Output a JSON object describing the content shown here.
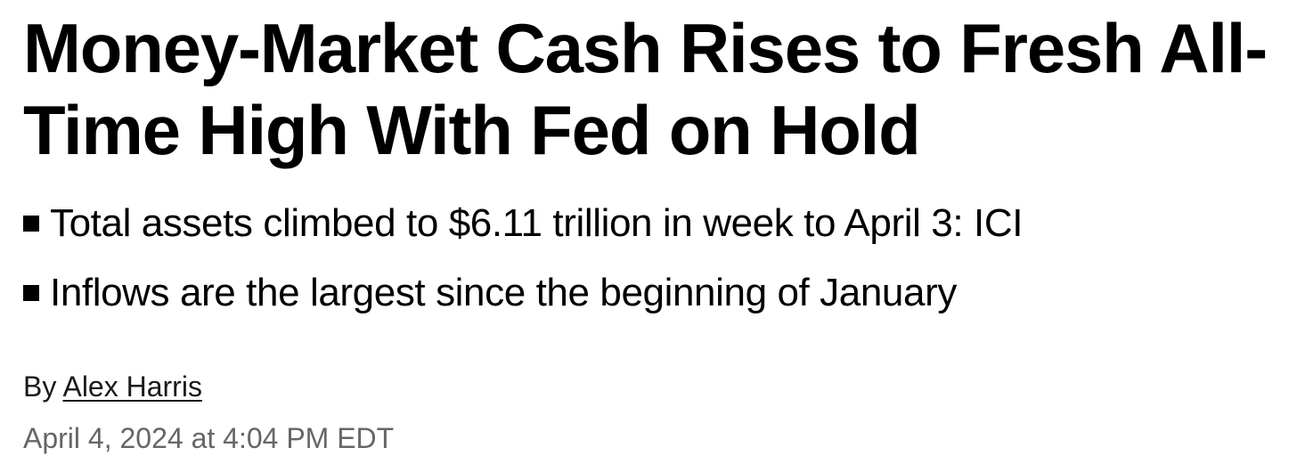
{
  "article": {
    "headline": "Money-Market Cash Rises to Fresh All-Time High With Fed on Hold",
    "bullets": [
      "Total assets climbed to $6.11 trillion in week to April 3: ICI",
      "Inflows are the largest since the beginning of January"
    ],
    "byline": {
      "prefix": "By",
      "author": "Alex Harris"
    },
    "timestamp": "April 4, 2024 at 4:04 PM EDT"
  },
  "colors": {
    "text": "#000000",
    "timestamp": "#666666"
  }
}
